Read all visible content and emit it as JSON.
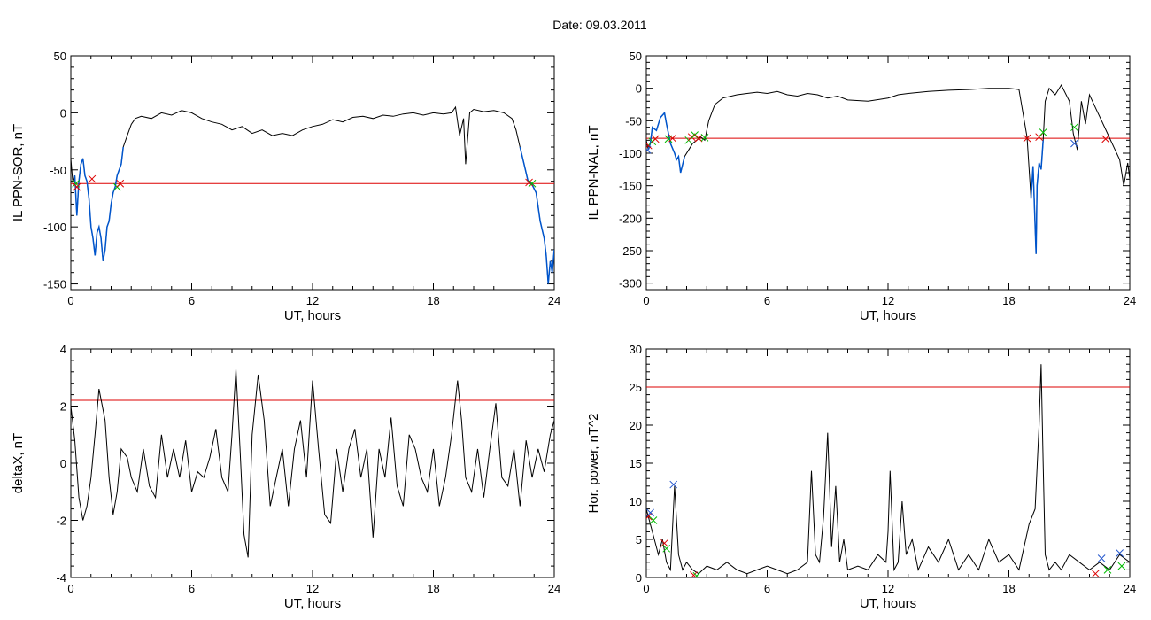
{
  "figure": {
    "title": "Date:  09.03.2011"
  },
  "chart_data": [
    {
      "type": "line",
      "id": "p1",
      "xlabel": "UT, hours",
      "ylabel": "IL PPN-SOR, nT",
      "xlim": [
        0,
        24
      ],
      "ylim": [
        -155,
        50
      ],
      "xticks": [
        0,
        6,
        12,
        18,
        24
      ],
      "yticks": [
        -150,
        -100,
        -50,
        0,
        50
      ],
      "threshold": -62,
      "colors": {
        "line": "#000000",
        "highlight": "#0055cc",
        "threshold": "#dd0000",
        "mark_a": "#dd0000",
        "mark_b": "#00bb00"
      },
      "series": [
        {
          "role": "signal",
          "x": [
            0,
            0.1,
            0.2,
            0.3,
            0.4,
            0.5,
            0.6,
            0.7,
            0.8,
            0.9,
            1.0,
            1.1,
            1.2,
            1.3,
            1.4,
            1.5,
            1.6,
            1.7,
            1.8,
            1.9,
            2.0,
            2.1,
            2.2,
            2.3,
            2.4,
            2.5,
            2.6,
            2.8,
            3.0,
            3.2,
            3.5,
            4.0,
            4.5,
            5.0,
            5.5,
            6.0,
            6.5,
            7.0,
            7.5,
            8.0,
            8.5,
            9.0,
            9.5,
            10.0,
            10.5,
            11.0,
            11.5,
            12.0,
            12.5,
            13.0,
            13.5,
            14.0,
            14.5,
            15.0,
            15.5,
            16.0,
            16.5,
            17.0,
            17.5,
            18.0,
            18.5,
            18.9,
            19.1,
            19.3,
            19.5,
            19.6,
            19.8,
            20.0,
            20.5,
            21.0,
            21.5,
            21.9,
            22.1,
            22.3,
            22.5,
            22.7,
            22.9,
            23.1,
            23.3,
            23.5,
            23.6,
            23.7,
            23.8,
            23.9,
            24.0
          ],
          "y": [
            -40,
            -62,
            -55,
            -90,
            -60,
            -45,
            -40,
            -55,
            -60,
            -75,
            -100,
            -110,
            -125,
            -105,
            -100,
            -110,
            -130,
            -120,
            -100,
            -95,
            -80,
            -70,
            -65,
            -55,
            -50,
            -45,
            -30,
            -20,
            -10,
            -5,
            -3,
            -5,
            0,
            -2,
            2,
            0,
            -5,
            -8,
            -10,
            -15,
            -12,
            -18,
            -15,
            -20,
            -18,
            -20,
            -15,
            -12,
            -10,
            -6,
            -8,
            -4,
            -3,
            -5,
            -2,
            -3,
            -1,
            0,
            -2,
            0,
            -1,
            0,
            5,
            -20,
            -5,
            -45,
            0,
            3,
            1,
            2,
            0,
            -5,
            -15,
            -30,
            -45,
            -60,
            -63,
            -70,
            -95,
            -110,
            -125,
            -150,
            -130,
            -140,
            -120
          ],
          "highlight_ranges": [
            [
              0.2,
              2.6
            ],
            [
              22.3,
              24.0
            ]
          ]
        }
      ],
      "markers": [
        {
          "x": 0.25,
          "y": -62,
          "kind": "b"
        },
        {
          "x": 0.3,
          "y": -65,
          "kind": "a"
        },
        {
          "x": 1.05,
          "y": -58,
          "kind": "a"
        },
        {
          "x": 2.3,
          "y": -65,
          "kind": "b"
        },
        {
          "x": 2.45,
          "y": -62,
          "kind": "a"
        },
        {
          "x": 22.75,
          "y": -61,
          "kind": "a"
        },
        {
          "x": 22.9,
          "y": -62,
          "kind": "b"
        }
      ]
    },
    {
      "type": "line",
      "id": "p2",
      "xlabel": "UT, hours",
      "ylabel": "IL PPN-NAL, nT",
      "xlim": [
        0,
        24
      ],
      "ylim": [
        -310,
        50
      ],
      "xticks": [
        0,
        6,
        12,
        18,
        24
      ],
      "yticks": [
        -300,
        -250,
        -200,
        -150,
        -100,
        -50,
        0,
        50
      ],
      "threshold": -77,
      "colors": {
        "line": "#000000",
        "highlight": "#0055cc",
        "threshold": "#dd0000",
        "mark_a": "#dd0000",
        "mark_b": "#00bb00",
        "mark_c": "#2255cc"
      },
      "series": [
        {
          "role": "signal",
          "x": [
            0,
            0.1,
            0.2,
            0.3,
            0.5,
            0.7,
            0.9,
            1.0,
            1.2,
            1.4,
            1.5,
            1.6,
            1.7,
            1.9,
            2.1,
            2.3,
            2.5,
            2.7,
            2.9,
            3.1,
            3.4,
            3.8,
            4.5,
            5.0,
            5.5,
            6.0,
            6.5,
            7.0,
            7.5,
            8.0,
            8.5,
            9.0,
            9.5,
            10.0,
            11.0,
            12.0,
            12.5,
            13.0,
            14.0,
            15.0,
            16.0,
            17.0,
            18.0,
            18.5,
            18.9,
            19.1,
            19.2,
            19.35,
            19.4,
            19.5,
            19.6,
            19.7,
            19.8,
            20.0,
            20.3,
            20.6,
            21.0,
            21.2,
            21.4,
            21.6,
            21.8,
            22.0,
            22.3,
            22.6,
            22.9,
            23.2,
            23.5,
            23.7,
            23.9,
            24.0
          ],
          "y": [
            -80,
            -95,
            -85,
            -60,
            -65,
            -45,
            -38,
            -55,
            -85,
            -100,
            -110,
            -105,
            -130,
            -105,
            -95,
            -85,
            -80,
            -75,
            -80,
            -50,
            -25,
            -15,
            -10,
            -8,
            -6,
            -8,
            -5,
            -10,
            -12,
            -8,
            -10,
            -15,
            -12,
            -18,
            -20,
            -15,
            -10,
            -8,
            -5,
            -3,
            -2,
            0,
            0,
            -2,
            -75,
            -170,
            -120,
            -255,
            -150,
            -115,
            -125,
            -80,
            -20,
            0,
            -10,
            5,
            -20,
            -70,
            -95,
            -20,
            -55,
            -10,
            -30,
            -50,
            -70,
            -90,
            -110,
            -150,
            -115,
            -140
          ],
          "highlight_ranges": [
            [
              0.1,
              1.9
            ],
            [
              18.95,
              19.75
            ]
          ]
        }
      ],
      "markers": [
        {
          "x": 0.05,
          "y": -95,
          "kind": "c"
        },
        {
          "x": 0.1,
          "y": -88,
          "kind": "a"
        },
        {
          "x": 0.3,
          "y": -82,
          "kind": "b"
        },
        {
          "x": 0.45,
          "y": -78,
          "kind": "a"
        },
        {
          "x": 1.1,
          "y": -78,
          "kind": "b"
        },
        {
          "x": 1.3,
          "y": -77,
          "kind": "a"
        },
        {
          "x": 2.1,
          "y": -80,
          "kind": "b"
        },
        {
          "x": 2.25,
          "y": -75,
          "kind": "a"
        },
        {
          "x": 2.4,
          "y": -72,
          "kind": "b"
        },
        {
          "x": 2.6,
          "y": -77,
          "kind": "a"
        },
        {
          "x": 2.9,
          "y": -76,
          "kind": "b"
        },
        {
          "x": 18.9,
          "y": -77,
          "kind": "a"
        },
        {
          "x": 19.5,
          "y": -75,
          "kind": "a"
        },
        {
          "x": 19.7,
          "y": -68,
          "kind": "b"
        },
        {
          "x": 21.25,
          "y": -85,
          "kind": "c"
        },
        {
          "x": 21.25,
          "y": -60,
          "kind": "b"
        },
        {
          "x": 22.8,
          "y": -78,
          "kind": "a"
        }
      ]
    },
    {
      "type": "line",
      "id": "p3",
      "xlabel": "UT, hours",
      "ylabel": "deltaX, nT",
      "xlim": [
        0,
        24
      ],
      "ylim": [
        -4,
        4
      ],
      "xticks": [
        0,
        6,
        12,
        18,
        24
      ],
      "yticks": [
        -4,
        -2,
        0,
        2,
        4
      ],
      "threshold": 2.2,
      "colors": {
        "line": "#000000",
        "threshold": "#dd0000"
      },
      "series": [
        {
          "role": "signal",
          "x": [
            0,
            0.2,
            0.4,
            0.6,
            0.8,
            1.0,
            1.2,
            1.4,
            1.7,
            1.9,
            2.1,
            2.3,
            2.5,
            2.8,
            3.0,
            3.3,
            3.6,
            3.9,
            4.2,
            4.5,
            4.8,
            5.1,
            5.4,
            5.7,
            6.0,
            6.3,
            6.6,
            6.9,
            7.2,
            7.5,
            7.8,
            8.0,
            8.2,
            8.4,
            8.6,
            8.8,
            9.0,
            9.3,
            9.6,
            9.9,
            10.2,
            10.5,
            10.8,
            11.1,
            11.4,
            11.7,
            12.0,
            12.3,
            12.6,
            12.9,
            13.2,
            13.5,
            13.8,
            14.1,
            14.4,
            14.7,
            15.0,
            15.3,
            15.6,
            15.9,
            16.2,
            16.5,
            16.8,
            17.1,
            17.4,
            17.7,
            18.0,
            18.3,
            18.6,
            18.9,
            19.2,
            19.4,
            19.6,
            19.9,
            20.2,
            20.5,
            20.8,
            21.1,
            21.4,
            21.7,
            22.0,
            22.3,
            22.6,
            22.9,
            23.2,
            23.5,
            23.8,
            24.0
          ],
          "y": [
            2.0,
            0.8,
            -1.2,
            -2.0,
            -1.5,
            -0.5,
            1.0,
            2.6,
            1.5,
            -0.5,
            -1.8,
            -1.0,
            0.5,
            0.2,
            -0.5,
            -1.0,
            0.5,
            -0.8,
            -1.2,
            1.0,
            -0.5,
            0.5,
            -0.5,
            0.8,
            -1.0,
            -0.3,
            -0.5,
            0.2,
            1.2,
            -0.5,
            -1.0,
            1.0,
            3.3,
            0.5,
            -2.5,
            -3.3,
            1.0,
            3.1,
            1.5,
            -1.5,
            -0.5,
            0.5,
            -1.5,
            0.5,
            1.5,
            -0.5,
            2.9,
            0.5,
            -1.8,
            -2.1,
            0.5,
            -1.0,
            0.5,
            1.2,
            -0.5,
            0.5,
            -2.6,
            0.5,
            -0.5,
            1.6,
            -0.8,
            -1.5,
            1.0,
            0.5,
            -0.5,
            -1.0,
            0.5,
            -1.5,
            -0.5,
            1.0,
            2.9,
            1.5,
            -0.5,
            -1.0,
            0.5,
            -1.2,
            0.5,
            2.1,
            -0.5,
            -0.8,
            0.5,
            -1.5,
            0.8,
            -0.5,
            0.5,
            -0.3,
            1.0,
            1.5
          ]
        }
      ],
      "markers": []
    },
    {
      "type": "line",
      "id": "p4",
      "xlabel": "UT, hours",
      "ylabel": "Hor. power, nT^2",
      "xlim": [
        0,
        24
      ],
      "ylim": [
        0,
        30
      ],
      "xticks": [
        0,
        6,
        12,
        18,
        24
      ],
      "yticks": [
        0,
        5,
        10,
        15,
        20,
        25,
        30
      ],
      "threshold": 25,
      "colors": {
        "line": "#000000",
        "threshold": "#dd0000",
        "mark_a": "#dd0000",
        "mark_b": "#00bb00",
        "mark_c": "#2255cc"
      },
      "series": [
        {
          "role": "signal",
          "x": [
            0,
            0.2,
            0.4,
            0.6,
            0.8,
            1.0,
            1.2,
            1.4,
            1.6,
            1.8,
            2.0,
            2.3,
            2.6,
            3.0,
            3.5,
            4.0,
            4.5,
            5.0,
            5.5,
            6.0,
            6.5,
            7.0,
            7.5,
            8.0,
            8.2,
            8.4,
            8.6,
            8.8,
            9.0,
            9.2,
            9.4,
            9.6,
            9.8,
            10.0,
            10.5,
            11.0,
            11.5,
            11.9,
            12.0,
            12.1,
            12.3,
            12.5,
            12.7,
            12.9,
            13.2,
            13.5,
            14.0,
            14.5,
            15.0,
            15.5,
            16.0,
            16.5,
            17.0,
            17.5,
            18.0,
            18.5,
            19.0,
            19.3,
            19.5,
            19.6,
            19.7,
            19.8,
            20.0,
            20.3,
            20.6,
            21.0,
            21.5,
            22.0,
            22.5,
            23.0,
            23.5,
            24.0
          ],
          "y": [
            9,
            7,
            5,
            3,
            5,
            2,
            1,
            12,
            3,
            1,
            2,
            1,
            0.5,
            1.5,
            1,
            2,
            1,
            0.5,
            1,
            1.5,
            1,
            0.5,
            1,
            2,
            14,
            3,
            2,
            8,
            19,
            4,
            12,
            2,
            5,
            1,
            1.5,
            1,
            3,
            2,
            6,
            14,
            1,
            2,
            10,
            3,
            5,
            1,
            4,
            2,
            5,
            1,
            3,
            1,
            5,
            2,
            3,
            1,
            7,
            9,
            20,
            28,
            15,
            3,
            1,
            2,
            1,
            3,
            2,
            1,
            2,
            1,
            3,
            2
          ]
        }
      ],
      "markers": [
        {
          "x": 0.1,
          "y": 8,
          "kind": "a"
        },
        {
          "x": 0.2,
          "y": 8.5,
          "kind": "c"
        },
        {
          "x": 0.35,
          "y": 7.5,
          "kind": "b"
        },
        {
          "x": 0.9,
          "y": 4.5,
          "kind": "a"
        },
        {
          "x": 1.0,
          "y": 3.8,
          "kind": "b"
        },
        {
          "x": 1.35,
          "y": 12.2,
          "kind": "c"
        },
        {
          "x": 2.35,
          "y": 0.3,
          "kind": "a"
        },
        {
          "x": 2.5,
          "y": 0.2,
          "kind": "b"
        },
        {
          "x": 22.3,
          "y": 0.5,
          "kind": "a"
        },
        {
          "x": 22.6,
          "y": 2.5,
          "kind": "c"
        },
        {
          "x": 22.9,
          "y": 1.0,
          "kind": "b"
        },
        {
          "x": 23.5,
          "y": 3.2,
          "kind": "c"
        },
        {
          "x": 23.6,
          "y": 1.5,
          "kind": "b"
        }
      ]
    }
  ]
}
